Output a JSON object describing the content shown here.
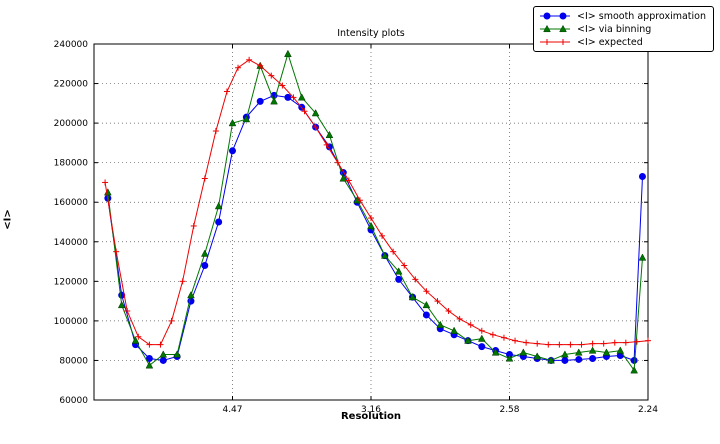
{
  "chart_data": {
    "type": "line",
    "title": "Intensity plots",
    "xlabel": "Resolution",
    "ylabel": "<I>",
    "grid": true,
    "legend_position": "top-right-outside",
    "x_range": [
      0,
      0.2
    ],
    "y_range": [
      60000,
      240000
    ],
    "y_ticks": [
      60000,
      80000,
      100000,
      120000,
      140000,
      160000,
      180000,
      200000,
      220000,
      240000
    ],
    "x_ticks": [
      {
        "x": 0.05,
        "label": "4.47"
      },
      {
        "x": 0.1,
        "label": "3.16"
      },
      {
        "x": 0.15,
        "label": "2.58"
      },
      {
        "x": 0.2,
        "label": "2.24"
      }
    ],
    "series": [
      {
        "name": "<I> smooth approximation",
        "color": "#0000ee",
        "marker": "circle",
        "x": [
          0.005,
          0.01,
          0.015,
          0.02,
          0.025,
          0.03,
          0.035,
          0.04,
          0.045,
          0.05,
          0.055,
          0.06,
          0.065,
          0.07,
          0.075,
          0.08,
          0.085,
          0.09,
          0.095,
          0.1,
          0.105,
          0.11,
          0.115,
          0.12,
          0.125,
          0.13,
          0.135,
          0.14,
          0.145,
          0.15,
          0.155,
          0.16,
          0.165,
          0.17,
          0.175,
          0.18,
          0.185,
          0.19,
          0.195,
          0.198
        ],
        "y": [
          162000,
          113000,
          88000,
          81000,
          80000,
          82000,
          110000,
          128000,
          150000,
          186000,
          203000,
          211000,
          214000,
          213000,
          208000,
          198000,
          188000,
          175000,
          160000,
          146000,
          133000,
          121000,
          112000,
          103000,
          96000,
          93000,
          90000,
          87000,
          85000,
          83000,
          82000,
          81000,
          80000,
          80000,
          80500,
          81000,
          82000,
          82500,
          80000,
          173000
        ]
      },
      {
        "name": "<I> via binning",
        "color": "#007700",
        "marker": "triangle",
        "x": [
          0.005,
          0.01,
          0.015,
          0.02,
          0.025,
          0.03,
          0.035,
          0.04,
          0.045,
          0.05,
          0.055,
          0.06,
          0.065,
          0.07,
          0.075,
          0.08,
          0.085,
          0.09,
          0.095,
          0.1,
          0.105,
          0.11,
          0.115,
          0.12,
          0.125,
          0.13,
          0.135,
          0.14,
          0.145,
          0.15,
          0.155,
          0.16,
          0.165,
          0.17,
          0.175,
          0.18,
          0.185,
          0.19,
          0.195,
          0.198
        ],
        "y": [
          165000,
          108000,
          90000,
          77500,
          83000,
          83000,
          113000,
          134000,
          158000,
          200000,
          202000,
          229000,
          211000,
          235000,
          213000,
          205000,
          194000,
          172000,
          161000,
          148000,
          133000,
          125000,
          112000,
          108000,
          98000,
          95000,
          90000,
          91000,
          84000,
          81000,
          84000,
          82000,
          80000,
          83000,
          84000,
          85000,
          84000,
          85000,
          75000,
          132000
        ]
      },
      {
        "name": "<I> expected",
        "color": "#ee0000",
        "marker": "plus",
        "x": [
          0.004,
          0.008,
          0.012,
          0.016,
          0.02,
          0.024,
          0.028,
          0.032,
          0.036,
          0.04,
          0.044,
          0.048,
          0.052,
          0.056,
          0.06,
          0.064,
          0.068,
          0.072,
          0.076,
          0.08,
          0.084,
          0.088,
          0.092,
          0.096,
          0.1,
          0.104,
          0.108,
          0.112,
          0.116,
          0.12,
          0.124,
          0.128,
          0.132,
          0.136,
          0.14,
          0.144,
          0.148,
          0.152,
          0.156,
          0.16,
          0.164,
          0.168,
          0.172,
          0.176,
          0.18,
          0.184,
          0.188,
          0.192,
          0.196,
          0.2
        ],
        "y": [
          170000,
          135000,
          105000,
          92000,
          88000,
          88000,
          100000,
          120000,
          148000,
          172000,
          196000,
          216000,
          228000,
          232000,
          229000,
          224000,
          219000,
          213000,
          206000,
          198000,
          189000,
          180000,
          171000,
          161000,
          152000,
          143000,
          135000,
          128000,
          121000,
          115000,
          110000,
          105000,
          101000,
          98000,
          95000,
          93000,
          91500,
          90000,
          89000,
          88500,
          88000,
          88000,
          88000,
          88000,
          88500,
          88500,
          89000,
          89000,
          89500,
          90000
        ]
      }
    ]
  }
}
